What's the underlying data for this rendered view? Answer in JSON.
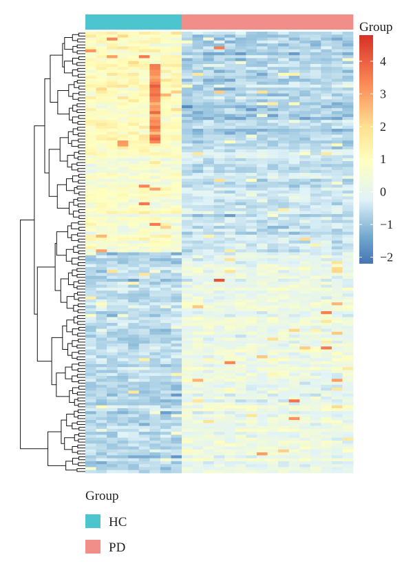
{
  "chart_data": {
    "type": "heatmap",
    "description": "Clustered heatmap of row-scaled expression; columns annotated by group, rows hierarchically clustered.",
    "groups": [
      {
        "name": "HC",
        "n_samples": 9,
        "color": "#4DC5CE"
      },
      {
        "name": "PD",
        "n_samples": 16,
        "color": "#F28E8A"
      }
    ],
    "n_rows": 150,
    "row_blocks": [
      {
        "rows": [
          0,
          40
        ],
        "HC_mean": 1.0,
        "PD_mean": -0.9,
        "hot_columns": [
          6
        ],
        "hot_value": 3.3
      },
      {
        "rows": [
          40,
          75
        ],
        "HC_mean": 0.7,
        "PD_mean": -0.5
      },
      {
        "rows": [
          75,
          150
        ],
        "HC_mean": -0.8,
        "PD_mean": 0.15
      }
    ],
    "notable_cells": [
      {
        "row": 5,
        "col": 12,
        "value": 3.5
      },
      {
        "row": 20,
        "col": 12,
        "value": 2.3
      },
      {
        "row": 38,
        "col": 3,
        "value": 3.0
      },
      {
        "row": 52,
        "col": 5,
        "value": 3.4
      },
      {
        "row": 58,
        "col": 5,
        "value": 3.6
      },
      {
        "row": 66,
        "col": 7,
        "value": 2.2
      },
      {
        "row": 84,
        "col": 12,
        "value": 4.2
      },
      {
        "row": 95,
        "col": 22,
        "value": 3.5
      },
      {
        "row": 107,
        "col": 22,
        "value": 3.6
      },
      {
        "row": 112,
        "col": 13,
        "value": 3.4
      },
      {
        "row": 125,
        "col": 19,
        "value": 3.7
      },
      {
        "row": 131,
        "col": 19,
        "value": 3.2
      },
      {
        "row": 143,
        "col": 16,
        "value": 3.0
      },
      {
        "row": 118,
        "col": 23,
        "value": 3.0
      }
    ],
    "colorbar": {
      "title": "Group",
      "min": -2.2,
      "max": 4.8,
      "ticks": [
        4,
        3,
        2,
        1,
        0,
        -1,
        -2
      ],
      "tick_labels": [
        "4",
        "3",
        "2",
        "1",
        "0",
        "−1",
        "−2"
      ],
      "colors": [
        "#4575B4",
        "#91BFDB",
        "#E0F3F8",
        "#FFFFBF",
        "#FEE090",
        "#FC8D59",
        "#D73027"
      ]
    },
    "legend": {
      "title": "Group",
      "items": [
        {
          "label": "HC",
          "color": "#4DC5CE"
        },
        {
          "label": "PD",
          "color": "#F28E8A"
        }
      ]
    }
  }
}
